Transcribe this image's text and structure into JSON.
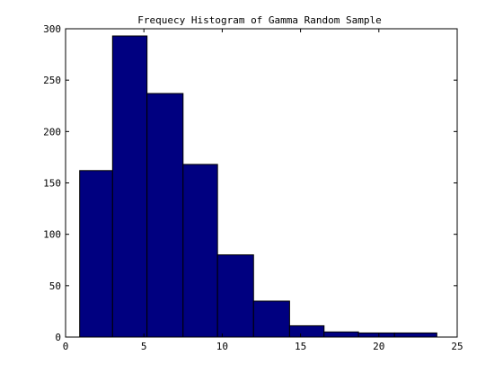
{
  "chart_data": {
    "type": "bar",
    "title": "Frequecy Histogram of Gamma Random Sample",
    "xlabel": "",
    "ylabel": "",
    "xlim": [
      0,
      25
    ],
    "ylim": [
      0,
      300
    ],
    "grid": false,
    "bar_color": "#000080",
    "edge_color": "#000000",
    "bins": [
      {
        "x0": 0.9,
        "x1": 3.0,
        "value": 162
      },
      {
        "x0": 3.0,
        "x1": 5.2,
        "value": 293
      },
      {
        "x0": 5.2,
        "x1": 7.5,
        "value": 237
      },
      {
        "x0": 7.5,
        "x1": 9.7,
        "value": 168
      },
      {
        "x0": 9.7,
        "x1": 12.0,
        "value": 80
      },
      {
        "x0": 12.0,
        "x1": 14.3,
        "value": 35
      },
      {
        "x0": 14.3,
        "x1": 16.5,
        "value": 11
      },
      {
        "x0": 16.5,
        "x1": 18.7,
        "value": 5
      },
      {
        "x0": 18.7,
        "x1": 21.0,
        "value": 4
      },
      {
        "x0": 21.0,
        "x1": 23.7,
        "value": 4
      }
    ],
    "x_ticks": [
      {
        "value": 0,
        "label": "0"
      },
      {
        "value": 5,
        "label": "5"
      },
      {
        "value": 10,
        "label": "10"
      },
      {
        "value": 15,
        "label": "15"
      },
      {
        "value": 20,
        "label": "20"
      },
      {
        "value": 25,
        "label": "25"
      }
    ],
    "y_ticks": [
      {
        "value": 0,
        "label": "0"
      },
      {
        "value": 50,
        "label": "50"
      },
      {
        "value": 100,
        "label": "100"
      },
      {
        "value": 150,
        "label": "150"
      },
      {
        "value": 200,
        "label": "200"
      },
      {
        "value": 250,
        "label": "250"
      },
      {
        "value": 300,
        "label": "300"
      }
    ]
  }
}
